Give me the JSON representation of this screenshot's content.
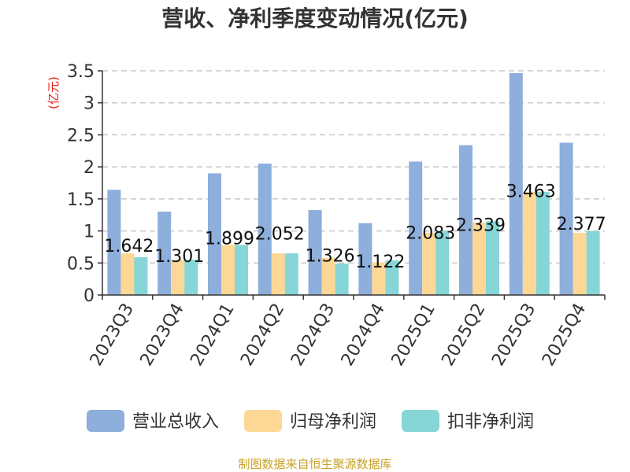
{
  "chart_data": {
    "type": "bar",
    "title": "营收、净利季度变动情况(亿元)",
    "ylabel": "(亿元)",
    "xlabel": "",
    "categories": [
      "2023Q3",
      "2023Q4",
      "2024Q1",
      "2024Q2",
      "2024Q3",
      "2024Q4",
      "2025Q1",
      "2025Q2",
      "2025Q3",
      "2025Q4"
    ],
    "series": [
      {
        "name": "营业总收入",
        "color": "#8eaedb",
        "values": [
          1.642,
          1.301,
          1.899,
          2.052,
          1.326,
          1.122,
          2.083,
          2.339,
          3.463,
          2.377
        ]
      },
      {
        "name": "归母净利润",
        "color": "#fdd795",
        "values": [
          0.65,
          0.55,
          0.78,
          0.65,
          0.58,
          0.51,
          0.97,
          1.13,
          1.61,
          0.97
        ]
      },
      {
        "name": "扣非净利润",
        "color": "#86d5d7",
        "values": [
          0.59,
          0.55,
          0.78,
          0.65,
          0.49,
          0.54,
          1.0,
          1.15,
          1.61,
          1.0
        ]
      }
    ],
    "data_labels": [
      "1.642",
      "1.301",
      "1.899",
      "2.052",
      "1.326",
      "1.122",
      "2.083",
      "2.339",
      "3.463",
      "2.377"
    ],
    "ylim": [
      0,
      3.5
    ],
    "yticks": [
      "0",
      "0.5",
      "1",
      "1.5",
      "2",
      "2.5",
      "3",
      "3.5"
    ],
    "grid": true,
    "legend_position": "bottom"
  },
  "source_text": "制图数据来自恒生聚源数据库"
}
